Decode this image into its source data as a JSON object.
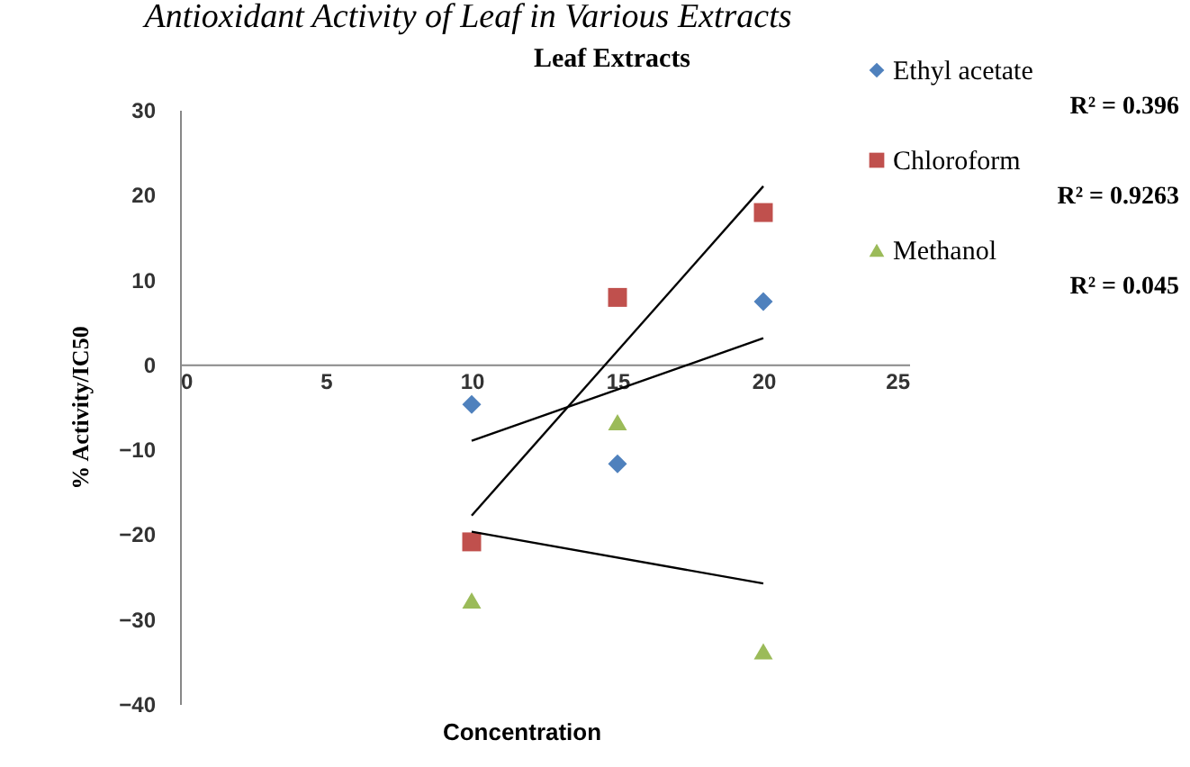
{
  "chart_data": {
    "type": "scatter",
    "title": "Leaf Extracts",
    "xlabel": "Concentration",
    "ylabel": "% Activity/IC50",
    "annotations": [
      "Antioxidant Activity of Leaf in Various Extracts",
      "R² = 0.396",
      "R² = 0.9263",
      "R² = 0.045"
    ],
    "xlim": [
      0,
      25
    ],
    "xticks": [
      0,
      5,
      10,
      15,
      20,
      25
    ],
    "ylim": [
      -40,
      30
    ],
    "yticks": [
      -40,
      -30,
      -20,
      -10,
      0,
      10,
      20,
      30
    ],
    "grid": false,
    "legend": "right",
    "series": [
      {
        "name": "Ethyl acetate",
        "marker": "diamond",
        "color": "#4f81bd",
        "x": [
          10,
          15,
          20
        ],
        "values": [
          -4.7,
          -11.7,
          7.4
        ]
      },
      {
        "name": "Chloroform",
        "marker": "square",
        "color": "#c0504d",
        "x": [
          10,
          15,
          20
        ],
        "values": [
          -20.9,
          7.9,
          17.9
        ]
      },
      {
        "name": "Methanol",
        "marker": "triangle",
        "color": "#9bbb59",
        "x": [
          10,
          15,
          20
        ],
        "values": [
          -27.8,
          -6.8,
          -33.8
        ]
      },
      {
        "type": "line",
        "marker": "none",
        "line_style": "solid",
        "color": "#000000",
        "x": [
          10,
          20
        ],
        "values": [
          -9.0,
          3.1
        ]
      },
      {
        "type": "line",
        "marker": "none",
        "line_style": "solid",
        "color": "#000000",
        "x": [
          10,
          20
        ],
        "values": [
          -17.8,
          21.0
        ]
      },
      {
        "type": "line",
        "marker": "none",
        "line_style": "solid",
        "color": "#000000",
        "x": [
          10,
          20
        ],
        "values": [
          -19.7,
          -25.8
        ]
      }
    ]
  }
}
